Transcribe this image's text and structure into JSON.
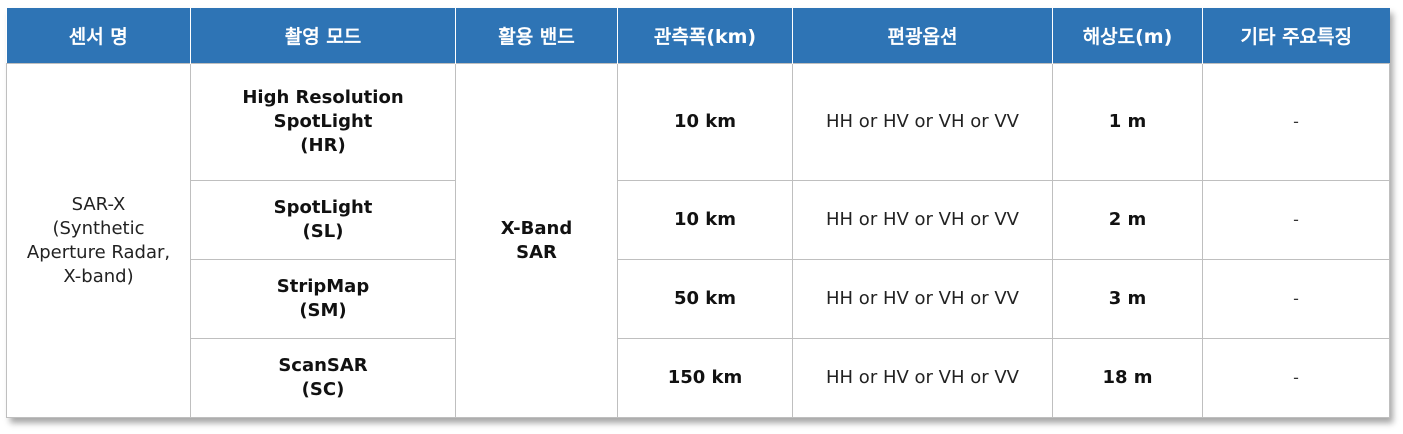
{
  "headers": [
    "센서 명",
    "촬영 모드",
    "활용 밴드",
    "관측폭(km)",
    "편광옵션",
    "해상도(m)",
    "기타 주요특징"
  ],
  "sensor": {
    "lines": [
      "SAR-X",
      "(Synthetic",
      "Aperture Radar,",
      "X-band)"
    ]
  },
  "band": {
    "lines": [
      "X-Band",
      "SAR"
    ]
  },
  "rows": [
    {
      "mode_lines": [
        "High Resolution",
        "SpotLight",
        "(HR)"
      ],
      "swath": "10 km",
      "polarization": "HH or HV or VH or VV",
      "resolution": "1 m",
      "other": "-"
    },
    {
      "mode_lines": [
        "SpotLight",
        "(SL)"
      ],
      "swath": "10 km",
      "polarization": "HH or HV or VH or VV",
      "resolution": "2 m",
      "other": "-"
    },
    {
      "mode_lines": [
        "StripMap",
        "(SM)"
      ],
      "swath": "50 km",
      "polarization": "HH or HV or VH or VV",
      "resolution": "3 m",
      "other": "-"
    },
    {
      "mode_lines": [
        "ScanSAR",
        "(SC)"
      ],
      "swath": "150 km",
      "polarization": "HH or HV or VH or VV",
      "resolution": "18 m",
      "other": "-"
    }
  ],
  "colors": {
    "header_bg": "#2e74b5",
    "header_text": "#ffffff",
    "border": "#bfbfbf"
  }
}
